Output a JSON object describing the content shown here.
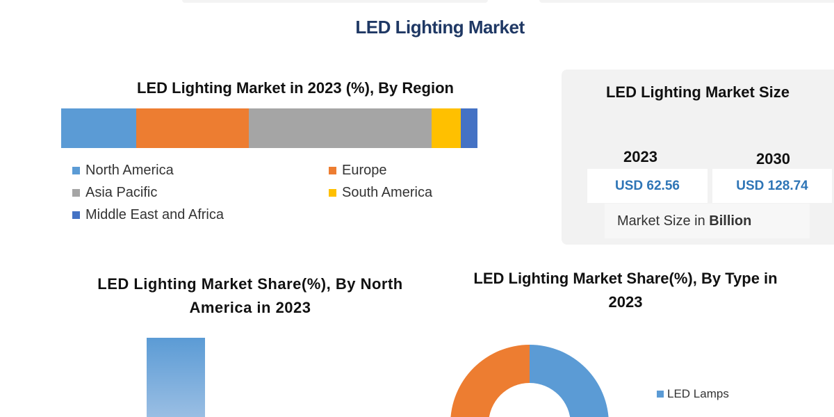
{
  "title": "LED Lighting Market",
  "chart_data": [
    {
      "type": "bar",
      "stacked": true,
      "orientation": "horizontal",
      "title": "LED Lighting Market in 2023 (%), By Region",
      "series": [
        {
          "name": "North America",
          "value": 18,
          "color": "#5b9bd5"
        },
        {
          "name": "Europe",
          "value": 27,
          "color": "#ed7d31"
        },
        {
          "name": "Asia Pacific",
          "value": 44,
          "color": "#a5a5a5"
        },
        {
          "name": "South America",
          "value": 7,
          "color": "#ffc000"
        },
        {
          "name": "Middle East and Africa",
          "value": 4,
          "color": "#4472c4"
        }
      ],
      "legend": "bottom"
    },
    {
      "type": "bar",
      "title": "LED Lighting Market Share(%), By North America in 2023",
      "bar_color": "#5b9bd5"
    },
    {
      "type": "pie",
      "donut": true,
      "title": "LED Lighting Market Share(%), By Type in 2023",
      "series": [
        {
          "name": "LED Lamps",
          "color": "#5b9bd5"
        },
        {
          "color": "#ed7d31"
        }
      ],
      "legend": "right"
    }
  ],
  "market_size": {
    "title": "LED Lighting Market Size",
    "years": [
      {
        "year": "2023",
        "value": "USD 62.56"
      },
      {
        "year": "2030",
        "value": "USD 128.74"
      }
    ],
    "unit_prefix": "Market Size in ",
    "unit_bold": "Billion",
    "value_color": "#2e75b6"
  }
}
